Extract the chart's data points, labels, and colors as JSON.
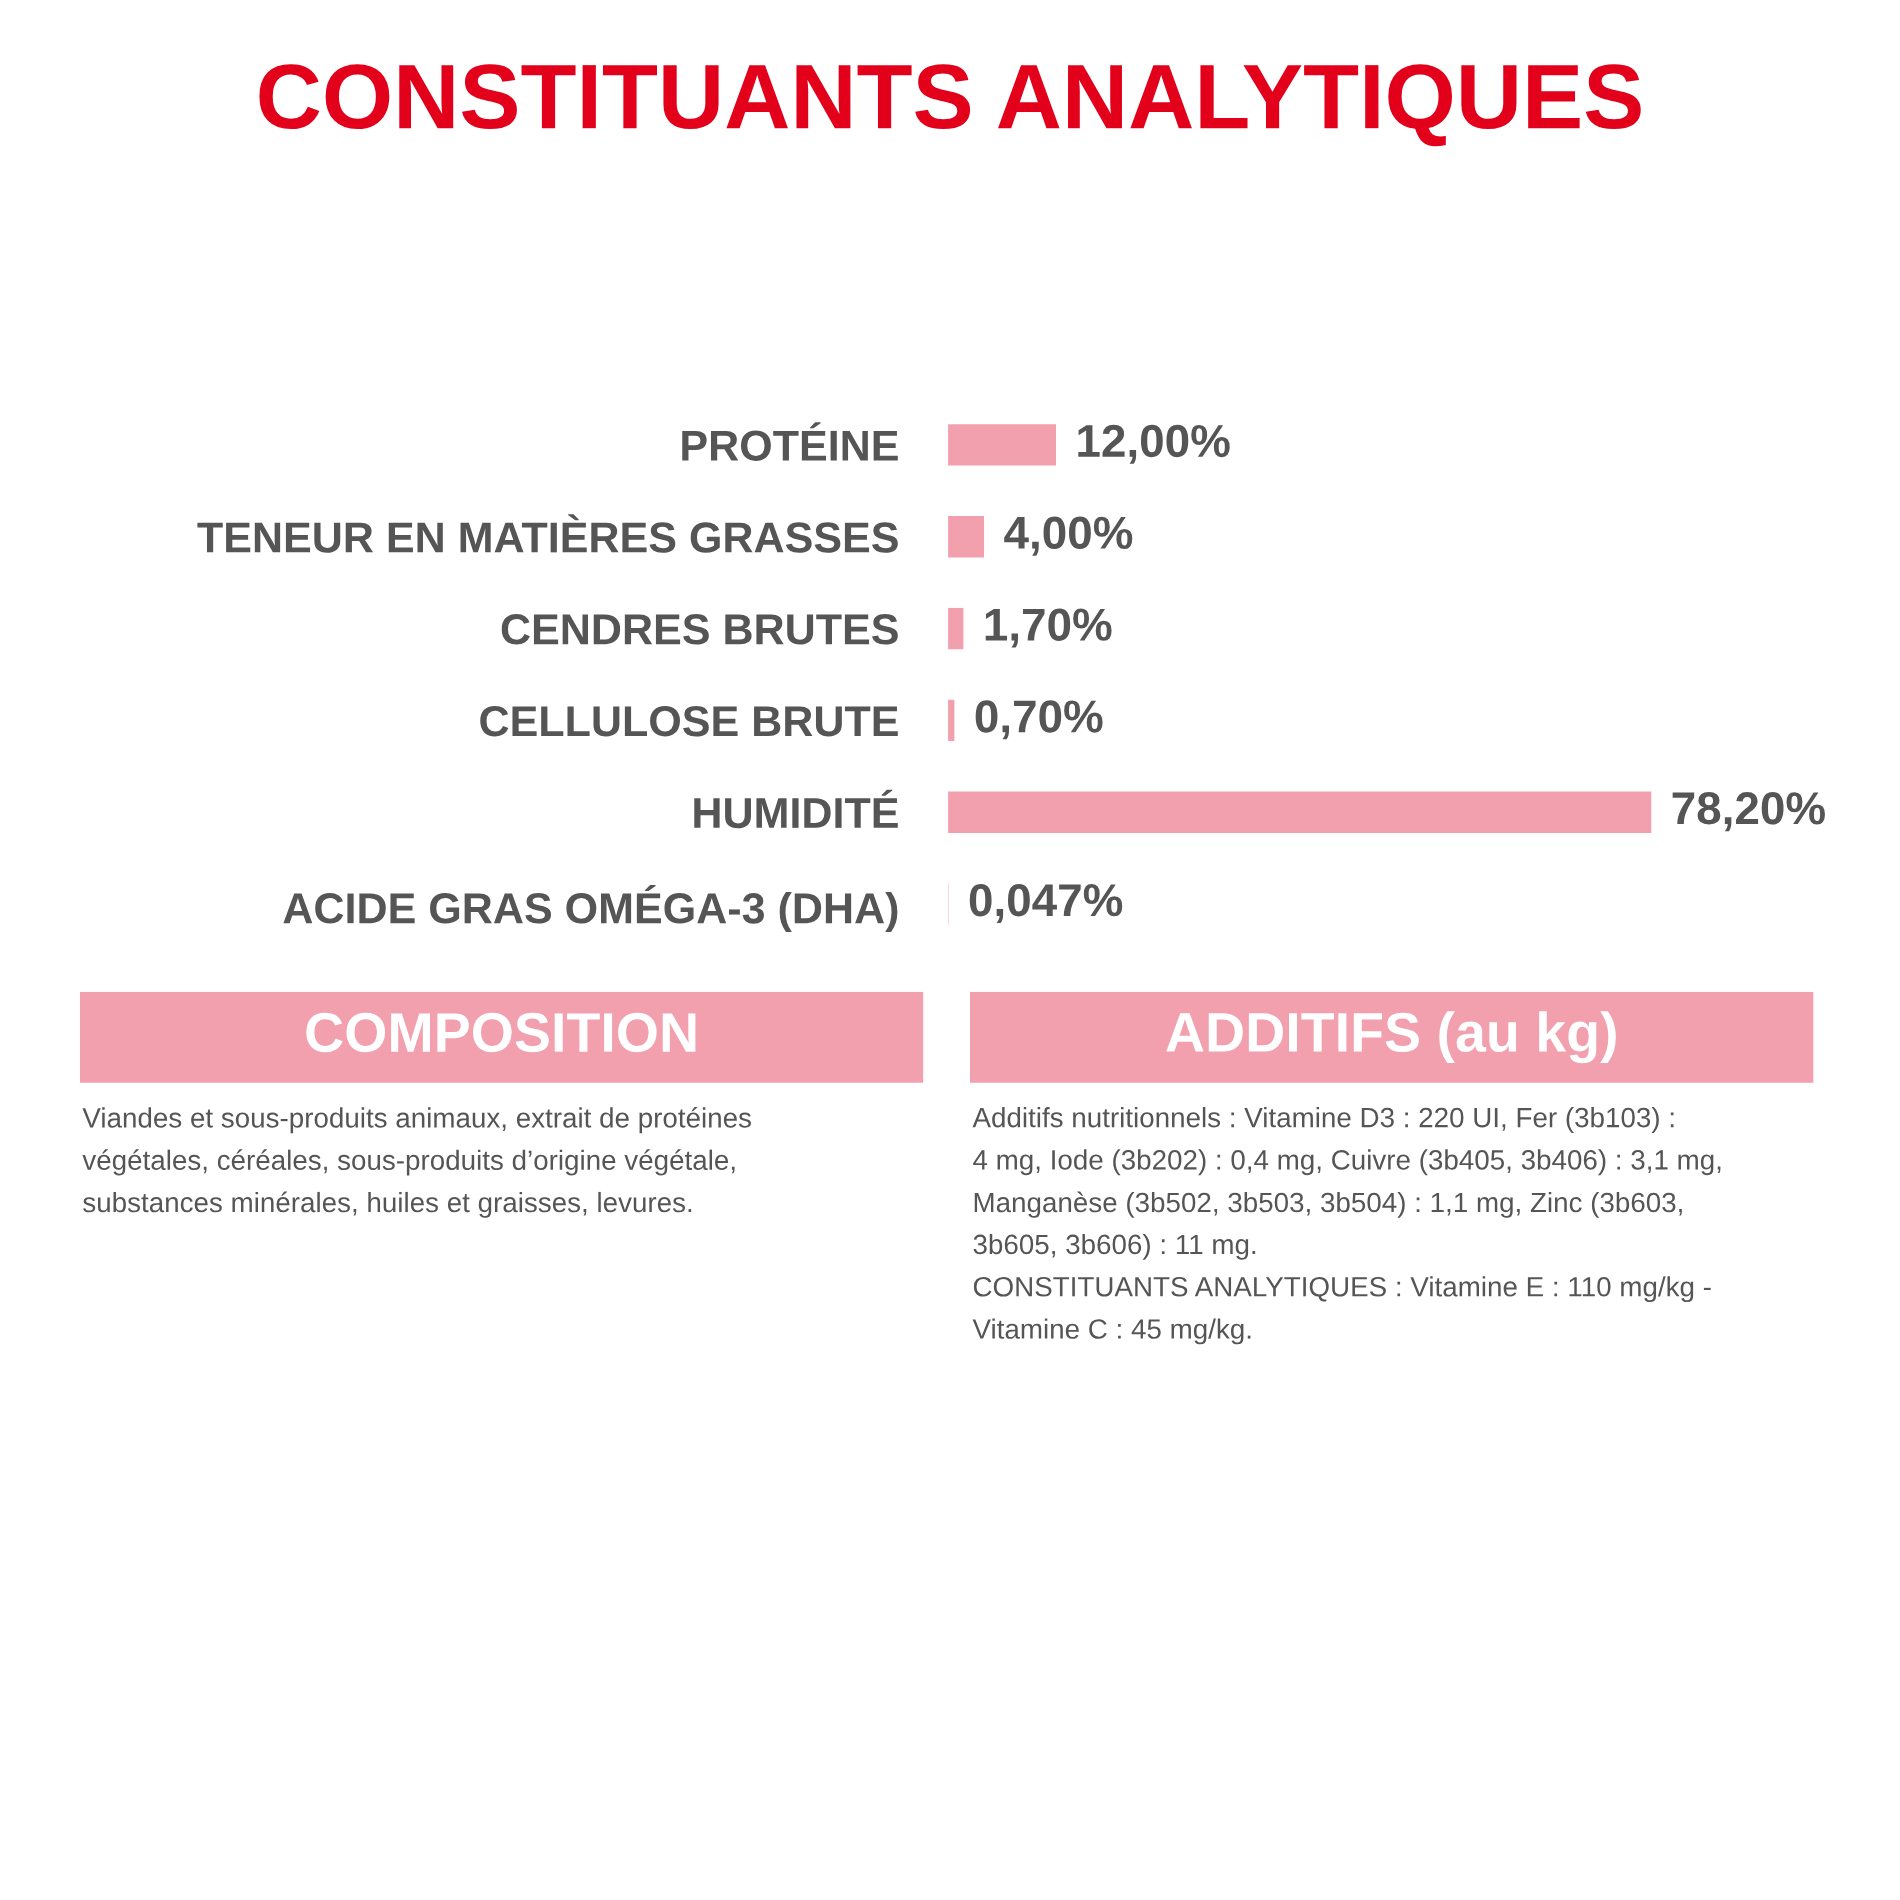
{
  "chart_data": [
    {
      "type": "bar",
      "orientation": "horizontal",
      "title": "CONSTITUANTS ANALYTIQUES",
      "categories": [
        "PROTÉINE",
        "TENEUR EN MATIÈRES GRASSES",
        "CENDRES BRUTES",
        "CELLULOSE BRUTE",
        "HUMIDITÉ",
        "ACIDE GRAS OMÉGA-3 (DHA)"
      ],
      "values": [
        12.0,
        4.0,
        1.7,
        0.7,
        78.2,
        0.047
      ],
      "value_labels": [
        "12,00%",
        "4,00%",
        "1,70%",
        "0,70%",
        "78,20%",
        "0,047%"
      ],
      "color": "#f2a0ae",
      "grid": false,
      "legend": false
    },
    {
      "type": "other",
      "title": "COMPOSITION",
      "color": "#f2a0ae",
      "annotations": [
        "Viandes et sous-produits animaux, extrait de protéines",
        "végétales, céréales, sous-produits d’origine végétale,",
        "substances minérales, huiles et graisses, levures."
      ]
    },
    {
      "type": "other",
      "title": "ADDITIFS (au kg)",
      "color": "#f2a0ae",
      "annotations": [
        "Additifs nutritionnels : Vitamine D3 : 220 UI, Fer (3b103) :",
        "4 mg, Iode (3b202) : 0,4 mg, Cuivre (3b405, 3b406) : 3,1 mg,",
        "Manganèse (3b502, 3b503, 3b504) : 1,1 mg, Zinc (3b603,",
        "3b605, 3b606) : 11 mg.",
        "CONSTITUANTS ANALYTIQUES : Vitamine E : 110 mg/kg -",
        "Vitamine C : 45 mg/kg."
      ]
    }
  ]
}
